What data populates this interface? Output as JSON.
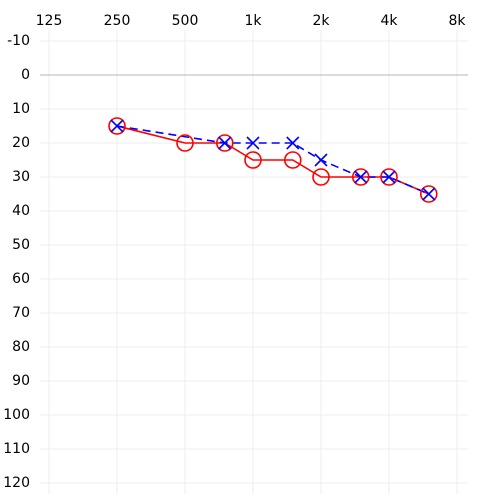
{
  "chart_data": {
    "type": "audiogram",
    "xscale": "log",
    "xlim": [
      125,
      8000
    ],
    "xticks": [
      125,
      250,
      500,
      {
        "value": 1000,
        "label": "1k"
      },
      {
        "value": 2000,
        "label": "2k"
      },
      {
        "value": 4000,
        "label": "4k"
      },
      {
        "value": 8000,
        "label": "8k"
      }
    ],
    "ylim": [
      -10,
      120
    ],
    "yticks": [
      -10,
      0,
      10,
      20,
      30,
      40,
      50,
      60,
      70,
      80,
      90,
      100,
      110,
      120
    ],
    "yinverted": true,
    "grid": true,
    "series": [
      {
        "color": "#ff0000",
        "marker": "circle",
        "line": "solid",
        "x": [
          250,
          500,
          750,
          1000,
          1500,
          2000,
          3000,
          4000,
          6000
        ],
        "values": [
          15,
          20,
          20,
          25,
          25,
          30,
          30,
          30,
          35
        ]
      },
      {
        "color": "#0000ff",
        "marker": "x",
        "line": "dashed",
        "x": [
          250,
          750,
          1000,
          1500,
          2000,
          3000,
          4000,
          6000
        ],
        "values": [
          15,
          20,
          20,
          20,
          25,
          30,
          30,
          35
        ]
      }
    ]
  }
}
